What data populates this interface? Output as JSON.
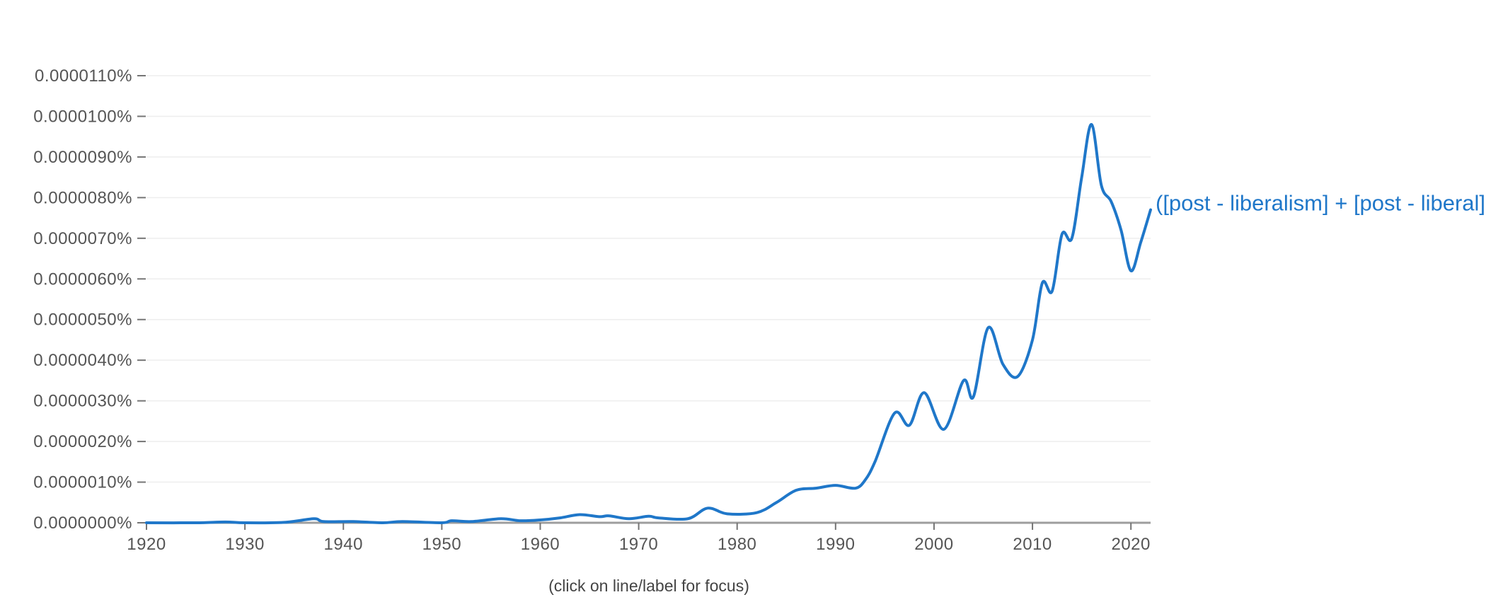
{
  "chart_data": {
    "type": "line",
    "title": "",
    "xlabel": "",
    "ylabel": "",
    "xlim": [
      1920,
      2022
    ],
    "ylim": [
      0,
      1.1e-05
    ],
    "grid": true,
    "y_ticks": [
      {
        "value": 0.0,
        "label": "0.0000000%"
      },
      {
        "value": 1e-06,
        "label": "0.0000010%"
      },
      {
        "value": 2e-06,
        "label": "0.0000020%"
      },
      {
        "value": 3e-06,
        "label": "0.0000030%"
      },
      {
        "value": 4e-06,
        "label": "0.0000040%"
      },
      {
        "value": 5e-06,
        "label": "0.0000050%"
      },
      {
        "value": 6e-06,
        "label": "0.0000060%"
      },
      {
        "value": 7e-06,
        "label": "0.0000070%"
      },
      {
        "value": 8e-06,
        "label": "0.0000080%"
      },
      {
        "value": 9e-06,
        "label": "0.0000090%"
      },
      {
        "value": 1e-05,
        "label": "0.0000100%"
      },
      {
        "value": 1.1e-05,
        "label": "0.0000110%"
      }
    ],
    "x_ticks": [
      {
        "value": 1920,
        "label": "1920"
      },
      {
        "value": 1930,
        "label": "1930"
      },
      {
        "value": 1940,
        "label": "1940"
      },
      {
        "value": 1950,
        "label": "1950"
      },
      {
        "value": 1960,
        "label": "1960"
      },
      {
        "value": 1970,
        "label": "1970"
      },
      {
        "value": 1980,
        "label": "1980"
      },
      {
        "value": 1990,
        "label": "1990"
      },
      {
        "value": 2000,
        "label": "2000"
      },
      {
        "value": 2010,
        "label": "2010"
      },
      {
        "value": 2020,
        "label": "2020"
      }
    ],
    "series": [
      {
        "name": "([post - liberalism] + [post - liberal]",
        "color": "#1f77c9",
        "points": [
          [
            1920,
            0.0
          ],
          [
            1925,
            0.0
          ],
          [
            1928,
            2e-08
          ],
          [
            1930,
            0.0
          ],
          [
            1934,
            1e-08
          ],
          [
            1937,
            1e-07
          ],
          [
            1938,
            3e-08
          ],
          [
            1941,
            3e-08
          ],
          [
            1944,
            0.0
          ],
          [
            1946,
            3e-08
          ],
          [
            1950,
            0.0
          ],
          [
            1951,
            5e-08
          ],
          [
            1953,
            3e-08
          ],
          [
            1956,
            1e-07
          ],
          [
            1958,
            5e-08
          ],
          [
            1960,
            7e-08
          ],
          [
            1962,
            1.2e-07
          ],
          [
            1964,
            2e-07
          ],
          [
            1966,
            1.5e-07
          ],
          [
            1967,
            1.7e-07
          ],
          [
            1969,
            1e-07
          ],
          [
            1971,
            1.6e-07
          ],
          [
            1972,
            1.2e-07
          ],
          [
            1975,
            1e-07
          ],
          [
            1977,
            3.6e-07
          ],
          [
            1979,
            2.2e-07
          ],
          [
            1982,
            2.5e-07
          ],
          [
            1984,
            5e-07
          ],
          [
            1986,
            8e-07
          ],
          [
            1988,
            8.5e-07
          ],
          [
            1990,
            9.2e-07
          ],
          [
            1992,
            8.5e-07
          ],
          [
            1993,
            1.05e-06
          ],
          [
            1994,
            1.5e-06
          ],
          [
            1996,
            2.7e-06
          ],
          [
            1997.5,
            2.4e-06
          ],
          [
            1999,
            3.2e-06
          ],
          [
            2001,
            2.3e-06
          ],
          [
            2003,
            3.5e-06
          ],
          [
            2004,
            3.1e-06
          ],
          [
            2005.5,
            4.8e-06
          ],
          [
            2007,
            3.9e-06
          ],
          [
            2008.5,
            3.6e-06
          ],
          [
            2010,
            4.5e-06
          ],
          [
            2011,
            5.9e-06
          ],
          [
            2012,
            5.7e-06
          ],
          [
            2013,
            7.1e-06
          ],
          [
            2014,
            7e-06
          ],
          [
            2015,
            8.5e-06
          ],
          [
            2016,
            9.8e-06
          ],
          [
            2017,
            8.3e-06
          ],
          [
            2018,
            7.9e-06
          ],
          [
            2019,
            7.2e-06
          ],
          [
            2020,
            6.2e-06
          ],
          [
            2021,
            6.9e-06
          ],
          [
            2022,
            7.7e-06
          ]
        ]
      }
    ]
  },
  "footnote": "(click on line/label for focus)"
}
